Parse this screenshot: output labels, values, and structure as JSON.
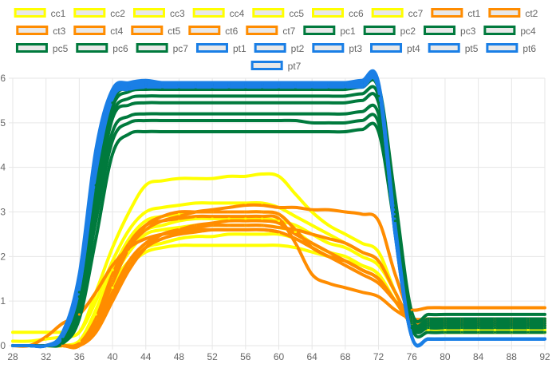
{
  "chart_data": {
    "type": "line",
    "x": [
      28,
      30,
      32,
      34,
      36,
      38,
      40,
      42,
      44,
      46,
      48,
      50,
      52,
      54,
      56,
      58,
      60,
      62,
      64,
      66,
      68,
      70,
      72,
      74,
      76,
      78,
      80,
      82,
      84,
      86,
      88,
      90,
      92
    ],
    "x_tick_labels": [
      "28",
      "32",
      "36",
      "40",
      "44",
      "48",
      "52",
      "56",
      "60",
      "64",
      "68",
      "72",
      "76",
      "80",
      "84",
      "88",
      "92"
    ],
    "ylim": [
      0,
      6
    ],
    "y_tick_labels": [
      "0",
      "1",
      "2",
      "3",
      "4",
      "5",
      "6"
    ],
    "grid": true,
    "legend_position": "top",
    "series": [
      {
        "name": "cc1",
        "color": "#ffff00",
        "values": [
          0,
          0,
          0,
          0,
          0.1,
          0.8,
          1.7,
          2.3,
          2.6,
          2.7,
          2.8,
          2.85,
          2.85,
          2.85,
          2.85,
          2.85,
          2.8,
          2.7,
          2.5,
          2.3,
          2.2,
          2.0,
          1.8,
          1.2,
          0.5,
          0.35,
          0.3,
          0.3,
          0.3,
          0.3,
          0.3,
          0.3,
          0.3
        ]
      },
      {
        "name": "cc2",
        "color": "#ffff00",
        "values": [
          0,
          0,
          0,
          0,
          0.1,
          0.7,
          1.5,
          2.1,
          2.5,
          2.6,
          2.65,
          2.7,
          2.7,
          2.7,
          2.7,
          2.7,
          2.65,
          2.55,
          2.3,
          2.1,
          2.0,
          1.8,
          1.6,
          1.0,
          0.5,
          0.35,
          0.3,
          0.3,
          0.3,
          0.3,
          0.3,
          0.3,
          0.3
        ]
      },
      {
        "name": "cc3",
        "color": "#ffff00",
        "values": [
          0,
          0,
          0,
          0,
          0.1,
          0.6,
          1.3,
          1.8,
          2.1,
          2.2,
          2.25,
          2.25,
          2.25,
          2.25,
          2.25,
          2.25,
          2.25,
          2.2,
          2.1,
          2.0,
          1.9,
          1.7,
          1.5,
          1.0,
          0.5,
          0.4,
          0.35,
          0.35,
          0.35,
          0.35,
          0.35,
          0.35,
          0.35
        ]
      },
      {
        "name": "cc4",
        "color": "#ffff00",
        "values": [
          0,
          0,
          0,
          0,
          0.1,
          0.6,
          1.4,
          1.9,
          2.2,
          2.3,
          2.4,
          2.45,
          2.45,
          2.5,
          2.5,
          2.5,
          2.5,
          2.4,
          2.2,
          2.0,
          1.9,
          1.7,
          1.5,
          1.0,
          0.5,
          0.4,
          0.4,
          0.4,
          0.4,
          0.4,
          0.4,
          0.4,
          0.4
        ]
      },
      {
        "name": "cc5",
        "color": "#ffff00",
        "values": [
          0.3,
          0.3,
          0.3,
          0.3,
          0.3,
          1.2,
          2.2,
          3.0,
          3.6,
          3.7,
          3.75,
          3.75,
          3.75,
          3.8,
          3.8,
          3.85,
          3.8,
          3.4,
          3.0,
          2.7,
          2.5,
          2.3,
          2.1,
          1.2,
          0.5,
          0.4,
          0.4,
          0.4,
          0.4,
          0.4,
          0.4,
          0.4,
          0.4
        ]
      },
      {
        "name": "cc6",
        "color": "#ffff00",
        "values": [
          0,
          0,
          0,
          0,
          0.1,
          0.8,
          1.7,
          2.4,
          2.8,
          2.9,
          2.95,
          3.0,
          3.0,
          3.0,
          3.0,
          3.0,
          2.95,
          2.6,
          2.2,
          2.0,
          1.9,
          1.8,
          1.6,
          1.0,
          0.5,
          0.35,
          0.3,
          0.3,
          0.3,
          0.3,
          0.3,
          0.3,
          0.3
        ]
      },
      {
        "name": "cc7",
        "color": "#ffff00",
        "values": [
          0.1,
          0.1,
          0.15,
          0.2,
          0.3,
          1.0,
          1.9,
          2.6,
          3.0,
          3.1,
          3.15,
          3.2,
          3.2,
          3.2,
          3.2,
          3.2,
          3.1,
          2.9,
          2.7,
          2.5,
          2.3,
          2.1,
          1.9,
          1.2,
          0.5,
          0.4,
          0.35,
          0.35,
          0.35,
          0.35,
          0.35,
          0.35,
          0.35
        ]
      },
      {
        "name": "ct1",
        "color": "#ff8c00",
        "values": [
          0,
          0,
          0,
          0,
          0,
          0.3,
          1.0,
          1.7,
          2.2,
          2.5,
          2.6,
          2.7,
          2.75,
          2.8,
          2.8,
          2.8,
          2.75,
          2.5,
          2.3,
          2.1,
          1.9,
          1.7,
          1.5,
          1.0,
          0.5,
          0.45,
          0.45,
          0.45,
          0.45,
          0.45,
          0.45,
          0.45,
          0.45
        ]
      },
      {
        "name": "ct2",
        "color": "#ff8c00",
        "values": [
          0,
          0,
          0,
          0,
          0,
          0.5,
          1.4,
          2.2,
          2.7,
          2.9,
          3.0,
          3.0,
          3.0,
          3.0,
          3.0,
          3.0,
          2.95,
          2.6,
          2.2,
          2.0,
          1.8,
          1.6,
          1.4,
          1.0,
          0.6,
          0.55,
          0.55,
          0.55,
          0.55,
          0.55,
          0.55,
          0.55,
          0.55
        ]
      },
      {
        "name": "ct3",
        "color": "#ff8c00",
        "values": [
          0,
          0,
          0,
          0,
          0,
          0.4,
          1.2,
          1.9,
          2.3,
          2.5,
          2.6,
          2.65,
          2.7,
          2.7,
          2.7,
          2.7,
          2.65,
          2.6,
          2.5,
          2.4,
          2.3,
          2.1,
          1.9,
          1.2,
          0.55,
          0.5,
          0.5,
          0.5,
          0.5,
          0.5,
          0.5,
          0.5,
          0.5
        ]
      },
      {
        "name": "ct4",
        "color": "#ff8c00",
        "values": [
          0,
          0,
          0,
          0,
          0.05,
          0.6,
          1.5,
          2.2,
          2.6,
          2.8,
          2.9,
          3.0,
          3.05,
          3.1,
          3.15,
          3.15,
          3.1,
          3.1,
          3.05,
          3.05,
          3.0,
          2.95,
          2.8,
          1.6,
          0.65,
          0.6,
          0.6,
          0.6,
          0.6,
          0.6,
          0.6,
          0.6,
          0.6
        ]
      },
      {
        "name": "ct5",
        "color": "#ff8c00",
        "values": [
          0,
          0,
          0,
          0,
          0,
          0.4,
          1.1,
          1.8,
          2.2,
          2.4,
          2.5,
          2.55,
          2.6,
          2.6,
          2.6,
          2.6,
          2.55,
          2.4,
          2.2,
          2.0,
          1.9,
          1.7,
          1.5,
          1.0,
          0.6,
          0.55,
          0.55,
          0.55,
          0.55,
          0.55,
          0.55,
          0.55,
          0.55
        ]
      },
      {
        "name": "ct6",
        "color": "#ff8c00",
        "values": [
          0,
          0,
          0.2,
          0.5,
          0.7,
          1.2,
          1.8,
          2.2,
          2.4,
          2.5,
          2.55,
          2.6,
          2.6,
          2.6,
          2.6,
          2.6,
          2.55,
          2.4,
          2.2,
          2.0,
          1.9,
          1.7,
          1.5,
          1.0,
          0.8,
          0.85,
          0.85,
          0.85,
          0.85,
          0.85,
          0.85,
          0.85,
          0.85
        ]
      },
      {
        "name": "ct7",
        "color": "#ff8c00",
        "values": [
          0,
          0,
          0,
          0,
          0,
          0.6,
          1.6,
          2.3,
          2.7,
          2.8,
          2.85,
          2.9,
          2.9,
          2.9,
          2.9,
          2.9,
          2.85,
          2.3,
          1.6,
          1.4,
          1.3,
          1.2,
          1.1,
          0.8,
          0.6,
          0.6,
          0.6,
          0.6,
          0.6,
          0.6,
          0.6,
          0.6,
          0.6
        ]
      },
      {
        "name": "pc1",
        "color": "#007a3d",
        "values": [
          0,
          0,
          0,
          0.05,
          0.6,
          2.4,
          4.3,
          4.75,
          4.8,
          4.8,
          4.8,
          4.8,
          4.8,
          4.8,
          4.8,
          4.8,
          4.8,
          4.8,
          4.8,
          4.8,
          4.8,
          4.85,
          4.8,
          2.6,
          0.4,
          0.3,
          0.3,
          0.3,
          0.3,
          0.3,
          0.3,
          0.3,
          0.3
        ]
      },
      {
        "name": "pc2",
        "color": "#007a3d",
        "values": [
          0,
          0,
          0,
          0.1,
          0.8,
          2.8,
          4.6,
          5.0,
          5.05,
          5.05,
          5.05,
          5.05,
          5.05,
          5.05,
          5.05,
          5.05,
          5.05,
          5.05,
          5.0,
          5.0,
          5.0,
          5.05,
          5.0,
          2.8,
          0.5,
          0.4,
          0.4,
          0.4,
          0.4,
          0.4,
          0.4,
          0.4,
          0.4
        ]
      },
      {
        "name": "pc3",
        "color": "#007a3d",
        "values": [
          0,
          0,
          0,
          0.1,
          0.9,
          3.0,
          4.8,
          5.15,
          5.2,
          5.2,
          5.2,
          5.2,
          5.2,
          5.2,
          5.2,
          5.2,
          5.2,
          5.2,
          5.2,
          5.2,
          5.2,
          5.25,
          5.2,
          2.9,
          0.5,
          0.45,
          0.45,
          0.45,
          0.45,
          0.45,
          0.45,
          0.45,
          0.45
        ]
      },
      {
        "name": "pc4",
        "color": "#007a3d",
        "values": [
          0,
          0,
          0,
          0.15,
          1.0,
          3.2,
          5.1,
          5.4,
          5.45,
          5.45,
          5.45,
          5.45,
          5.45,
          5.45,
          5.45,
          5.45,
          5.45,
          5.45,
          5.45,
          5.45,
          5.45,
          5.5,
          5.45,
          3.0,
          0.55,
          0.5,
          0.5,
          0.5,
          0.5,
          0.5,
          0.5,
          0.5,
          0.5
        ]
      },
      {
        "name": "pc5",
        "color": "#007a3d",
        "values": [
          0,
          0,
          0,
          0.2,
          1.1,
          3.4,
          5.2,
          5.55,
          5.6,
          5.6,
          5.6,
          5.6,
          5.6,
          5.6,
          5.6,
          5.6,
          5.6,
          5.6,
          5.6,
          5.6,
          5.6,
          5.65,
          5.6,
          3.1,
          0.6,
          0.55,
          0.55,
          0.55,
          0.55,
          0.55,
          0.55,
          0.55,
          0.55
        ]
      },
      {
        "name": "pc6",
        "color": "#007a3d",
        "values": [
          0,
          0,
          0,
          0.2,
          1.2,
          3.5,
          5.35,
          5.7,
          5.75,
          5.75,
          5.75,
          5.75,
          5.75,
          5.75,
          5.75,
          5.75,
          5.75,
          5.75,
          5.75,
          5.75,
          5.75,
          5.8,
          5.75,
          3.2,
          0.65,
          0.6,
          0.6,
          0.6,
          0.6,
          0.6,
          0.6,
          0.6,
          0.6
        ]
      },
      {
        "name": "pc7",
        "color": "#007a3d",
        "values": [
          0,
          0,
          0,
          0.25,
          1.3,
          3.6,
          5.45,
          5.8,
          5.85,
          5.85,
          5.85,
          5.85,
          5.85,
          5.85,
          5.85,
          5.85,
          5.85,
          5.85,
          5.85,
          5.85,
          5.85,
          5.9,
          5.85,
          3.3,
          0.75,
          0.7,
          0.7,
          0.7,
          0.7,
          0.7,
          0.7,
          0.7,
          0.7
        ]
      },
      {
        "name": "pt1",
        "color": "#1a7fe6",
        "values": [
          0,
          0,
          0,
          0.2,
          1.4,
          4.0,
          5.6,
          5.8,
          5.85,
          5.85,
          5.85,
          5.85,
          5.85,
          5.85,
          5.85,
          5.85,
          5.85,
          5.85,
          5.85,
          5.85,
          5.85,
          5.85,
          5.8,
          2.5,
          0.2,
          0.15,
          0.15,
          0.15,
          0.15,
          0.15,
          0.15,
          0.15,
          0.15
        ]
      },
      {
        "name": "pt2",
        "color": "#1a7fe6",
        "values": [
          0,
          0,
          0,
          0.25,
          1.5,
          4.2,
          5.7,
          5.85,
          5.9,
          5.9,
          5.9,
          5.9,
          5.9,
          5.9,
          5.9,
          5.9,
          5.9,
          5.9,
          5.9,
          5.9,
          5.9,
          5.9,
          5.85,
          2.6,
          0.2,
          0.15,
          0.15,
          0.15,
          0.15,
          0.15,
          0.15,
          0.15,
          0.15
        ]
      },
      {
        "name": "pt3",
        "color": "#1a7fe6",
        "values": [
          0,
          0,
          0,
          0.2,
          1.3,
          3.9,
          5.55,
          5.75,
          5.8,
          5.8,
          5.8,
          5.8,
          5.8,
          5.8,
          5.8,
          5.8,
          5.8,
          5.8,
          5.8,
          5.8,
          5.8,
          5.8,
          5.75,
          2.5,
          0.2,
          0.15,
          0.15,
          0.15,
          0.15,
          0.15,
          0.15,
          0.15,
          0.15
        ]
      },
      {
        "name": "pt4",
        "color": "#1a7fe6",
        "values": [
          0,
          0,
          0,
          0.3,
          1.6,
          4.4,
          5.75,
          5.9,
          5.95,
          5.9,
          5.9,
          5.9,
          5.9,
          5.9,
          5.9,
          5.9,
          5.9,
          5.9,
          5.9,
          5.9,
          5.9,
          5.95,
          5.9,
          2.7,
          0.2,
          0.15,
          0.15,
          0.15,
          0.15,
          0.15,
          0.15,
          0.15,
          0.15
        ]
      },
      {
        "name": "pt5",
        "color": "#1a7fe6",
        "values": [
          0,
          0,
          0,
          0.2,
          1.4,
          4.1,
          5.65,
          5.8,
          5.85,
          5.85,
          5.85,
          5.85,
          5.85,
          5.85,
          5.85,
          5.85,
          5.85,
          5.85,
          5.85,
          5.85,
          5.85,
          5.85,
          5.8,
          2.6,
          0.2,
          0.15,
          0.15,
          0.15,
          0.15,
          0.15,
          0.15,
          0.15,
          0.15
        ]
      },
      {
        "name": "pt6",
        "color": "#1a7fe6",
        "values": [
          0,
          0,
          0,
          0.25,
          1.5,
          4.3,
          5.7,
          5.85,
          5.9,
          5.9,
          5.9,
          5.9,
          5.9,
          5.9,
          5.9,
          5.9,
          5.9,
          5.9,
          5.9,
          5.9,
          5.9,
          5.9,
          5.85,
          2.6,
          0.2,
          0.15,
          0.15,
          0.15,
          0.15,
          0.15,
          0.15,
          0.15,
          0.15
        ]
      },
      {
        "name": "pt7",
        "color": "#1a7fe6",
        "values": [
          0,
          0,
          0,
          0.2,
          1.3,
          4.0,
          5.6,
          5.8,
          5.85,
          5.85,
          5.85,
          5.85,
          5.85,
          5.85,
          5.85,
          5.85,
          5.85,
          5.85,
          5.85,
          5.85,
          5.85,
          5.85,
          5.8,
          2.5,
          0.2,
          0.15,
          0.15,
          0.15,
          0.15,
          0.15,
          0.15,
          0.15,
          0.15
        ]
      }
    ]
  }
}
